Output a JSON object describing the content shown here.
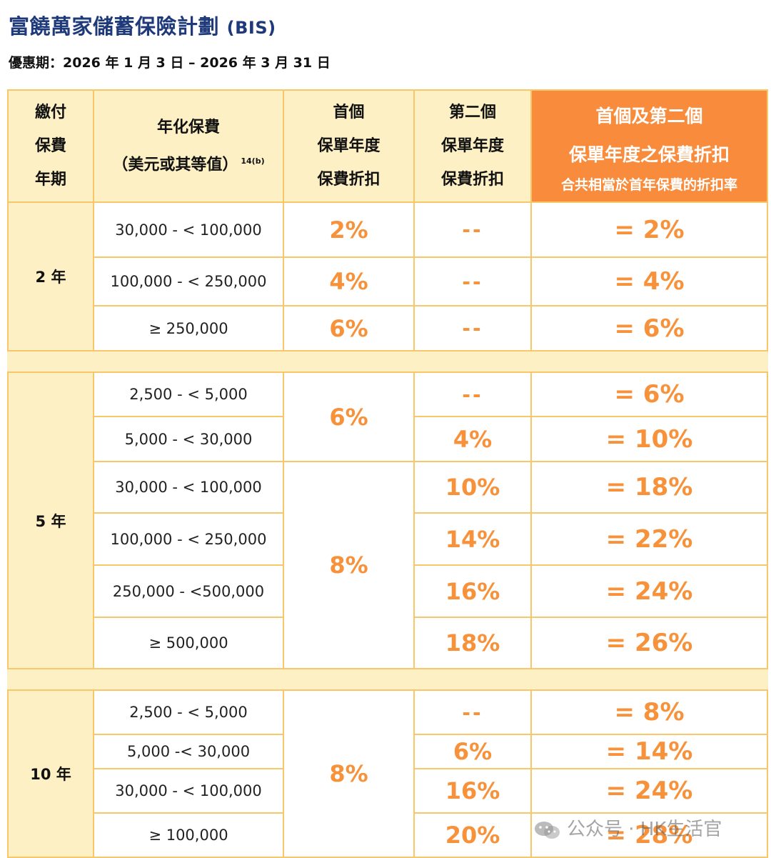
{
  "header": {
    "title": "富饒萬家儲蓄保險計劃",
    "title_suffix": "(BIS)",
    "period": "優惠期：2026 年 1 月 3 日 – 2026 年 3 月 31 日"
  },
  "table": {
    "columns": {
      "term": "繳付\n保費\n年期",
      "premium": "年化保費\n（美元或其等值）",
      "premium_note": "14(b)",
      "first_year": "首個\n保單年度\n保費折扣",
      "second_year": "第二個\n保單年度\n保費折扣",
      "combined_title": "首個及第二個\n保單年度之保費折扣",
      "combined_subtitle": "合共相當於首年保費的折扣率"
    },
    "groups": [
      {
        "term": "2 年",
        "rows": [
          {
            "range": "30,000 - < 100,000",
            "first": "2%",
            "second": "--",
            "total": "= 2%"
          },
          {
            "range": "100,000 - < 250,000",
            "first": "4%",
            "second": "--",
            "total": "= 4%"
          },
          {
            "range": "≥ 250,000",
            "first": "6%",
            "second": "--",
            "total": "= 6%"
          }
        ]
      },
      {
        "term": "5 年",
        "first_merged": [
          "6%",
          "8%"
        ],
        "rows": [
          {
            "range": "2,500 - < 5,000",
            "second": "--",
            "total": "= 6%"
          },
          {
            "range": "5,000 - < 30,000",
            "second": "4%",
            "total": "= 10%"
          },
          {
            "range": "30,000 - < 100,000",
            "second": "10%",
            "total": "= 18%"
          },
          {
            "range": "100,000 - < 250,000",
            "second": "14%",
            "total": "= 22%"
          },
          {
            "range": "250,000 - <500,000",
            "second": "16%",
            "total": "= 24%"
          },
          {
            "range": "≥ 500,000",
            "second": "18%",
            "total": "= 26%"
          }
        ]
      },
      {
        "term": "10 年",
        "first_merged": "8%",
        "rows": [
          {
            "range": "2,500 - < 5,000",
            "second": "--",
            "total": "= 8%"
          },
          {
            "range": "5,000 -< 30,000",
            "second": "6%",
            "total": "= 14%"
          },
          {
            "range": "30,000 - < 100,000",
            "second": "16%",
            "total": "= 24%"
          },
          {
            "range": "≥ 100,000",
            "second": "20%",
            "total": "= 28%"
          }
        ]
      }
    ]
  },
  "watermark": {
    "text": "公众号 · HK生活官",
    "icon": "wechat-icon"
  }
}
